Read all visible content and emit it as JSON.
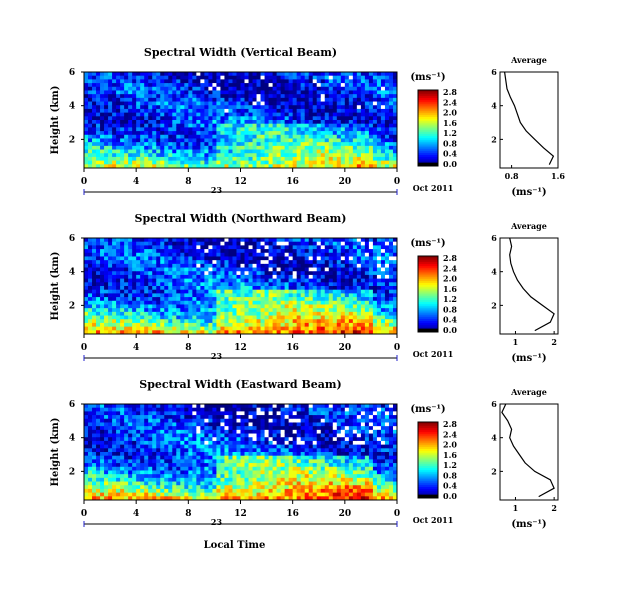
{
  "chart_data": [
    {
      "type": "heatmap",
      "title": "Spectral Width (Vertical Beam)",
      "ylabel": "Height (km)",
      "x_ticks": [
        "0",
        "4",
        "8",
        "12",
        "16",
        "20",
        "0"
      ],
      "xlim": [
        0,
        24
      ],
      "y_ticks": [
        "2",
        "4",
        "6"
      ],
      "ylim": [
        0.3,
        6.0
      ],
      "date_marker": "23",
      "date_label": "Oct 2011",
      "colorbar": {
        "unit": "(ms⁻¹)",
        "tick_labels": [
          "0.0",
          "0.4",
          "0.8",
          "1.2",
          "1.6",
          "2.0",
          "2.4",
          "2.8"
        ],
        "range": [
          0.0,
          3.0
        ]
      },
      "average_profile": {
        "title": "Average",
        "xlabel": "(ms⁻¹)",
        "x_ticks": [
          "0.8",
          "1.6"
        ],
        "xlim": [
          0.6,
          1.6
        ],
        "y_ticks": [
          "2",
          "4",
          "6"
        ],
        "ylim": [
          0.3,
          6.0
        ],
        "height_km": [
          0.5,
          1.0,
          1.5,
          2.0,
          2.5,
          3.0,
          3.5,
          4.0,
          4.5,
          5.0,
          5.5,
          6.0
        ],
        "width_ms": [
          1.45,
          1.52,
          1.35,
          1.2,
          1.05,
          0.95,
          0.9,
          0.85,
          0.78,
          0.72,
          0.7,
          0.68
        ]
      }
    },
    {
      "type": "heatmap",
      "title": "Spectral Width (Northward Beam)",
      "ylabel": "Height (km)",
      "x_ticks": [
        "0",
        "4",
        "8",
        "12",
        "16",
        "20",
        "0"
      ],
      "xlim": [
        0,
        24
      ],
      "y_ticks": [
        "2",
        "4",
        "6"
      ],
      "ylim": [
        0.3,
        6.0
      ],
      "date_marker": "23",
      "date_label": "Oct 2011",
      "colorbar": {
        "unit": "(ms⁻¹)",
        "tick_labels": [
          "0.0",
          "0.4",
          "0.8",
          "1.2",
          "1.6",
          "2.0",
          "2.4",
          "2.8"
        ],
        "range": [
          0.0,
          3.0
        ]
      },
      "average_profile": {
        "title": "Average",
        "xlabel": "(ms⁻¹)",
        "x_ticks": [
          "1",
          "2"
        ],
        "xlim": [
          0.6,
          2.1
        ],
        "y_ticks": [
          "2",
          "4",
          "6"
        ],
        "ylim": [
          0.3,
          6.0
        ],
        "height_km": [
          0.5,
          1.0,
          1.5,
          2.0,
          2.5,
          3.0,
          3.5,
          4.0,
          4.5,
          5.0,
          5.5,
          6.0
        ],
        "width_ms": [
          1.5,
          1.9,
          2.0,
          1.7,
          1.4,
          1.2,
          1.05,
          0.95,
          0.88,
          0.85,
          0.9,
          0.85
        ]
      }
    },
    {
      "type": "heatmap",
      "title": "Spectral Width (Eastward Beam)",
      "ylabel": "Height (km)",
      "x_ticks": [
        "0",
        "4",
        "8",
        "12",
        "16",
        "20",
        "0"
      ],
      "xlim": [
        0,
        24
      ],
      "y_ticks": [
        "2",
        "4",
        "6"
      ],
      "ylim": [
        0.3,
        6.0
      ],
      "date_marker": "23",
      "date_label": "Oct 2011",
      "colorbar": {
        "unit": "(ms⁻¹)",
        "tick_labels": [
          "0.0",
          "0.4",
          "0.8",
          "1.2",
          "1.6",
          "2.0",
          "2.4",
          "2.8"
        ],
        "range": [
          0.0,
          3.0
        ]
      },
      "average_profile": {
        "title": "Average",
        "xlabel": "(ms⁻¹)",
        "x_ticks": [
          "1",
          "2"
        ],
        "xlim": [
          0.6,
          2.1
        ],
        "y_ticks": [
          "2",
          "4",
          "6"
        ],
        "ylim": [
          0.3,
          6.0
        ],
        "height_km": [
          0.5,
          1.0,
          1.5,
          2.0,
          2.5,
          3.0,
          3.5,
          4.0,
          4.5,
          5.0,
          5.5,
          6.0
        ],
        "width_ms": [
          1.6,
          2.0,
          1.9,
          1.5,
          1.25,
          1.1,
          0.95,
          0.85,
          0.9,
          0.8,
          0.65,
          0.75
        ]
      }
    }
  ],
  "x_axis_label": "Local Time"
}
